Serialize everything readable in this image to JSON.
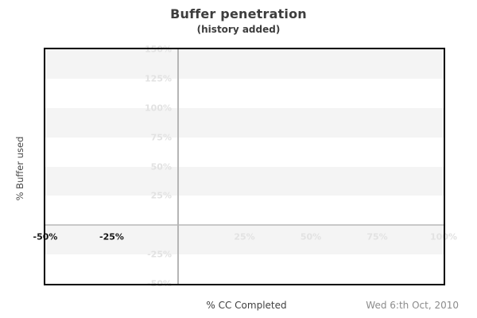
{
  "header": {
    "title": "Buffer penetration",
    "subtitle": "(history added)"
  },
  "axes": {
    "y_title": "% Buffer used",
    "x_title": "% CC Completed"
  },
  "footer": {
    "date": "Wed 6:th Oct, 2010"
  },
  "colors": {
    "band_gray": "#f4f4f4",
    "band_white": "#ffffff",
    "faint_tick_label": "#e2e2e2",
    "strong_tick_label": "#151515",
    "vertical_zero_line": "#b5b5b5",
    "horizontal_zero_line": "#c8c8c8",
    "plot_border": "#000000",
    "title_text": "#3d3d3d",
    "axis_title_text": "#4a4a4a",
    "date_text": "#8c8c8c"
  },
  "chart_data": {
    "type": "line",
    "title": "Buffer penetration",
    "subtitle": "(history added)",
    "xlabel": "% CC Completed",
    "ylabel": "% Buffer used",
    "xlim": [
      -50,
      100
    ],
    "ylim": [
      -50,
      150
    ],
    "x_ticks": [
      {
        "label": "-50%",
        "value": -50,
        "strong": true
      },
      {
        "label": "-25%",
        "value": -25,
        "strong": true
      },
      {
        "label": "25%",
        "value": 25,
        "strong": false
      },
      {
        "label": "50%",
        "value": 50,
        "strong": false
      },
      {
        "label": "75%",
        "value": 75,
        "strong": false
      },
      {
        "label": "100%",
        "value": 100,
        "strong": false
      }
    ],
    "y_ticks": [
      {
        "label": "150%",
        "value": 150
      },
      {
        "label": "125%",
        "value": 125
      },
      {
        "label": "100%",
        "value": 100
      },
      {
        "label": "75%",
        "value": 75
      },
      {
        "label": "50%",
        "value": 50
      },
      {
        "label": "25%",
        "value": 25
      },
      {
        "label": "-25%",
        "value": -25
      },
      {
        "label": "-50%",
        "value": -50
      }
    ],
    "grid": {
      "horizontal_bands": true,
      "band_step_pct": 25,
      "first_band_shaded": true,
      "zero_x_gridline": true,
      "zero_y_gridline": true
    },
    "legend": null,
    "series": [],
    "note": "No data series plotted; chart area is empty",
    "annotations": [
      "Wed 6:th Oct, 2010"
    ]
  }
}
